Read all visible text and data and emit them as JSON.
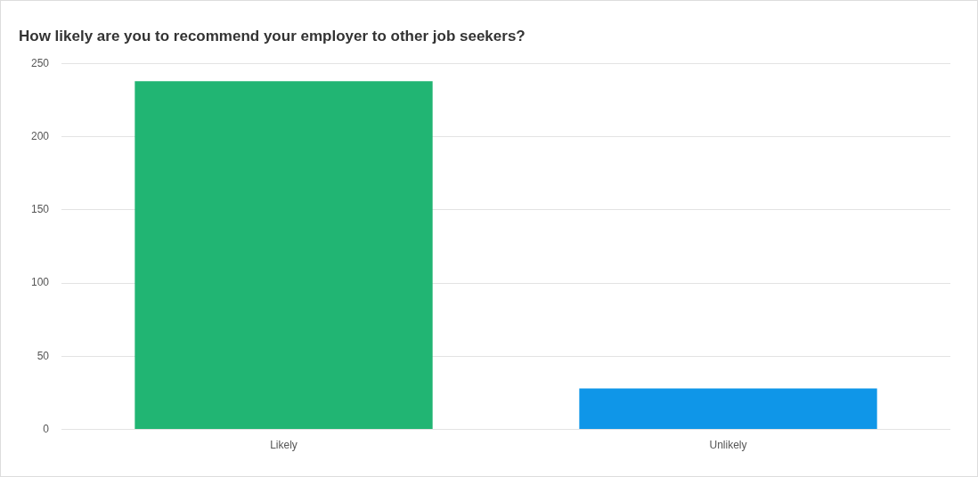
{
  "chart_data": {
    "type": "bar",
    "title": "How likely are you to recommend your employer to other job seekers?",
    "categories": [
      "Likely",
      "Unlikely"
    ],
    "values": [
      238,
      28
    ],
    "colors": [
      "#21b573",
      "#0f96e8"
    ],
    "ylim": [
      0,
      250
    ],
    "yticks": [
      0,
      50,
      100,
      150,
      200,
      250
    ],
    "grid": "y",
    "legend": false
  }
}
